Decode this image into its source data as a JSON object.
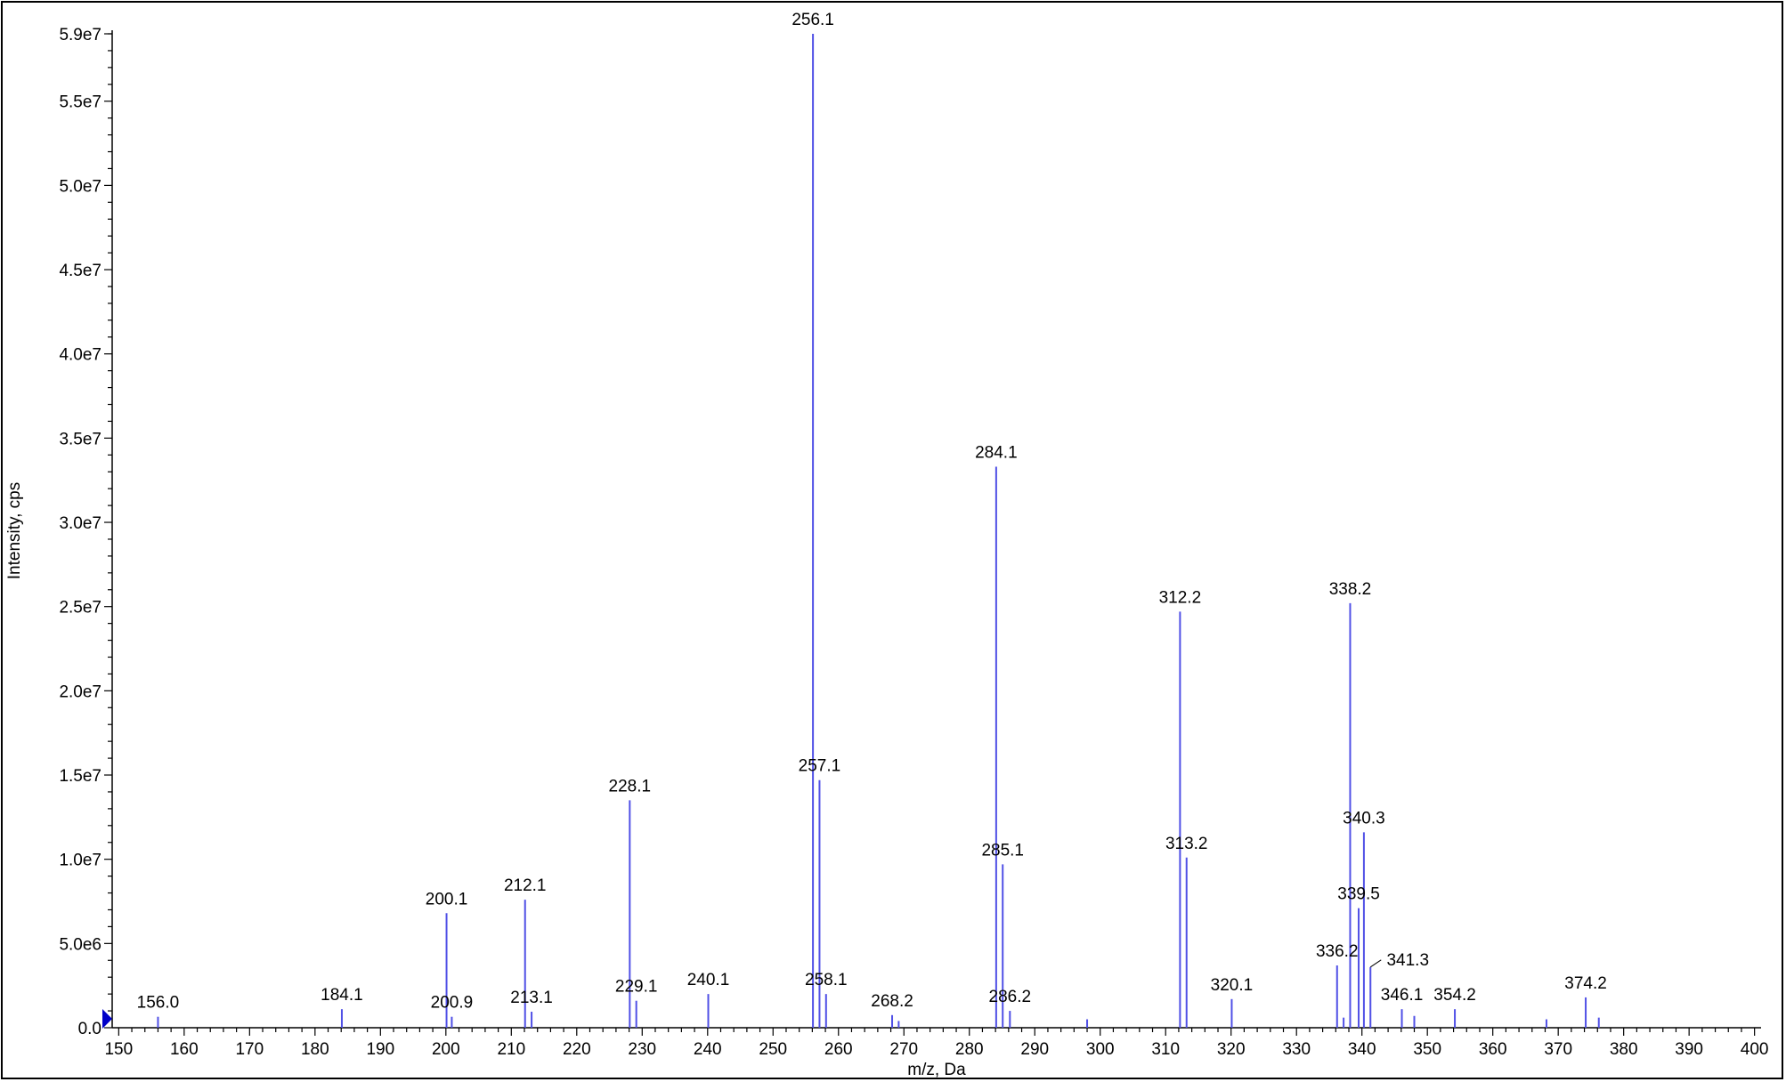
{
  "chart_data": {
    "type": "bar",
    "title": "",
    "xlabel": "m/z, Da",
    "ylabel": "Intensity, cps",
    "xlim": [
      149,
      401
    ],
    "ylim": [
      0,
      59000000
    ],
    "x_ticks": [
      150,
      160,
      170,
      180,
      190,
      200,
      210,
      220,
      230,
      240,
      250,
      260,
      270,
      280,
      290,
      300,
      310,
      320,
      330,
      340,
      350,
      360,
      370,
      380,
      390,
      400
    ],
    "y_ticks": [
      {
        "value": 0,
        "label": "0.0"
      },
      {
        "value": 5000000,
        "label": "5.0e6"
      },
      {
        "value": 10000000,
        "label": "1.0e7"
      },
      {
        "value": 15000000,
        "label": "1.5e7"
      },
      {
        "value": 20000000,
        "label": "2.0e7"
      },
      {
        "value": 25000000,
        "label": "2.5e7"
      },
      {
        "value": 30000000,
        "label": "3.0e7"
      },
      {
        "value": 35000000,
        "label": "3.5e7"
      },
      {
        "value": 40000000,
        "label": "4.0e7"
      },
      {
        "value": 45000000,
        "label": "4.5e7"
      },
      {
        "value": 50000000,
        "label": "5.0e7"
      },
      {
        "value": 55000000,
        "label": "5.5e7"
      },
      {
        "value": 59000000,
        "label": "5.9e7"
      }
    ],
    "grid": false,
    "line_color": "#5050e6",
    "marker_color": "#0000c8",
    "peaks": [
      {
        "mz": 156.0,
        "intensity": 650000,
        "label": "156.0"
      },
      {
        "mz": 184.1,
        "intensity": 1100000,
        "label": "184.1"
      },
      {
        "mz": 200.1,
        "intensity": 6800000,
        "label": "200.1"
      },
      {
        "mz": 200.9,
        "intensity": 650000,
        "label": "200.9"
      },
      {
        "mz": 212.1,
        "intensity": 7600000,
        "label": "212.1"
      },
      {
        "mz": 213.1,
        "intensity": 950000,
        "label": "213.1"
      },
      {
        "mz": 228.1,
        "intensity": 13500000,
        "label": "228.1"
      },
      {
        "mz": 229.1,
        "intensity": 1600000,
        "label": "229.1"
      },
      {
        "mz": 240.1,
        "intensity": 2000000,
        "label": "240.1"
      },
      {
        "mz": 256.1,
        "intensity": 59000000,
        "label": "256.1"
      },
      {
        "mz": 257.1,
        "intensity": 14700000,
        "label": "257.1"
      },
      {
        "mz": 258.1,
        "intensity": 2000000,
        "label": "258.1"
      },
      {
        "mz": 268.2,
        "intensity": 750000,
        "label": "268.2"
      },
      {
        "mz": 269.2,
        "intensity": 400000,
        "label": ""
      },
      {
        "mz": 284.1,
        "intensity": 33300000,
        "label": "284.1"
      },
      {
        "mz": 285.1,
        "intensity": 9700000,
        "label": "285.1"
      },
      {
        "mz": 286.2,
        "intensity": 1000000,
        "label": "286.2"
      },
      {
        "mz": 298.0,
        "intensity": 500000,
        "label": ""
      },
      {
        "mz": 312.2,
        "intensity": 24700000,
        "label": "312.2"
      },
      {
        "mz": 313.2,
        "intensity": 10100000,
        "label": "313.2"
      },
      {
        "mz": 320.1,
        "intensity": 1700000,
        "label": "320.1"
      },
      {
        "mz": 336.2,
        "intensity": 3700000,
        "label": "336.2"
      },
      {
        "mz": 337.2,
        "intensity": 600000,
        "label": ""
      },
      {
        "mz": 338.2,
        "intensity": 25200000,
        "label": "338.2"
      },
      {
        "mz": 339.5,
        "intensity": 7100000,
        "label": "339.5"
      },
      {
        "mz": 340.3,
        "intensity": 11600000,
        "label": "340.3"
      },
      {
        "mz": 341.3,
        "intensity": 3600000,
        "label": "341.3"
      },
      {
        "mz": 346.1,
        "intensity": 1100000,
        "label": "346.1"
      },
      {
        "mz": 348.0,
        "intensity": 700000,
        "label": ""
      },
      {
        "mz": 354.2,
        "intensity": 1100000,
        "label": "354.2"
      },
      {
        "mz": 368.2,
        "intensity": 500000,
        "label": ""
      },
      {
        "mz": 374.2,
        "intensity": 1800000,
        "label": "374.2"
      },
      {
        "mz": 376.2,
        "intensity": 600000,
        "label": ""
      }
    ]
  }
}
